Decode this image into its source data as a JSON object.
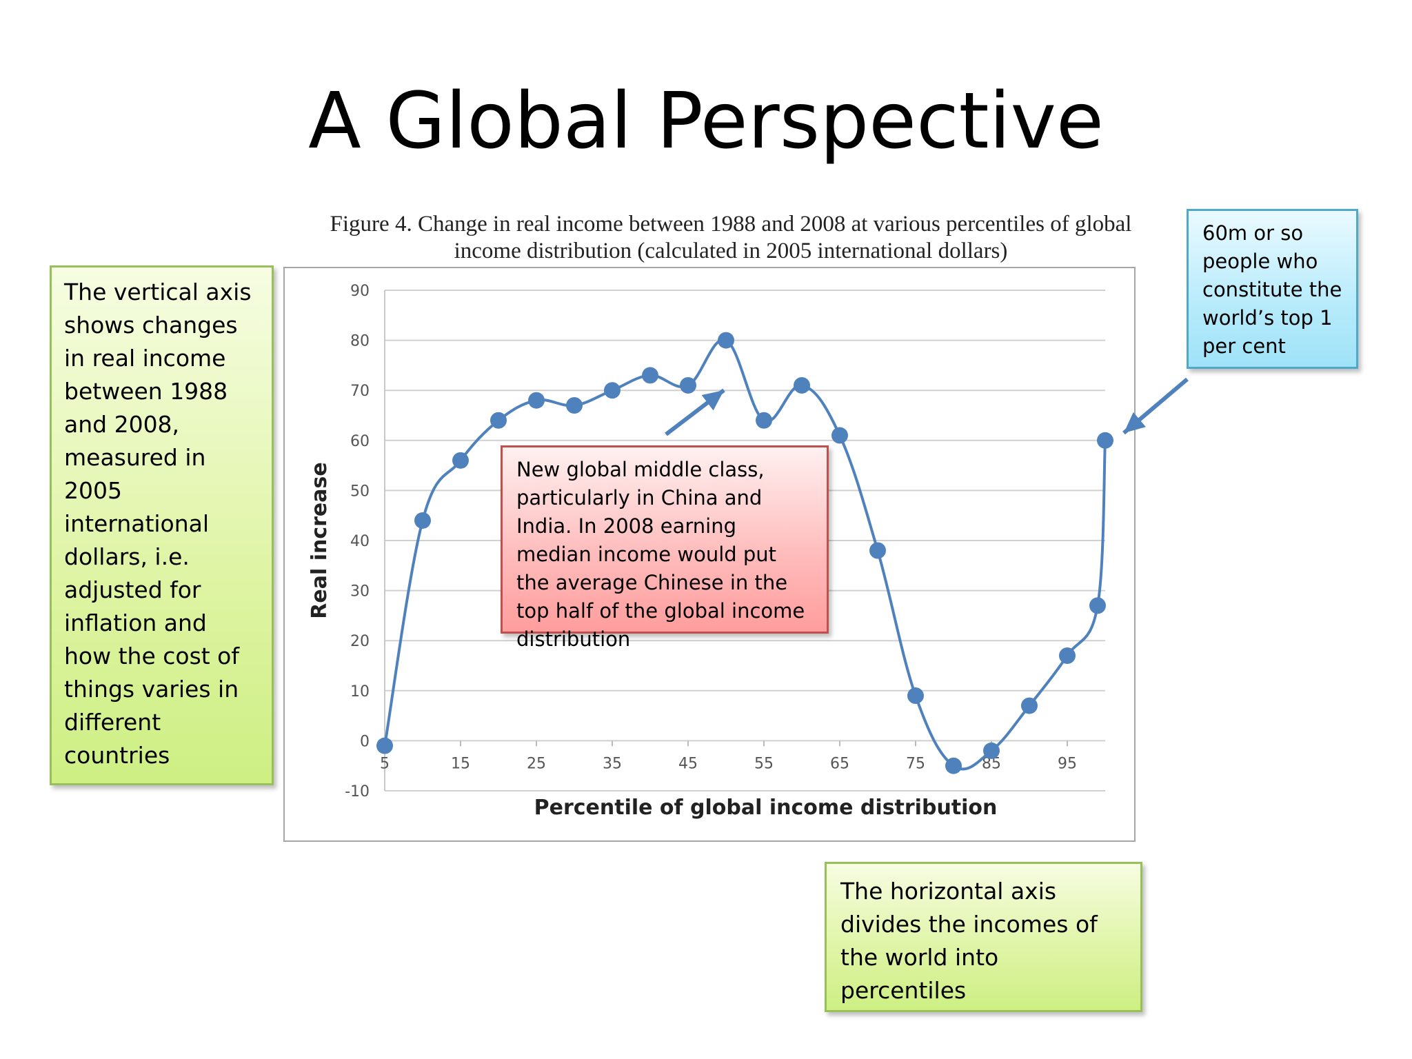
{
  "slide": {
    "title": "A Global Perspective"
  },
  "figure": {
    "caption_line1": "Figure 4. Change in real income between 1988 and 2008 at various percentiles of global",
    "caption_line2": "income distribution (calculated in 2005 international dollars)"
  },
  "callouts": {
    "vertical_axis": "The vertical axis shows changes in real income between 1988 and 2008, measured in 2005 international dollars, i.e. adjusted for inflation and how the cost of things varies in different countries",
    "middle_class": "New global middle class, particularly in China and India. In 2008 earning median income would put the average Chinese in the top half of the global income distribution",
    "top_one_percent": "60m or so people who constitute the world’s top 1 per cent",
    "horizontal_axis": "The horizontal axis divides the incomes of the world into percentiles"
  },
  "colors": {
    "series": "#4f81bd",
    "arrow": "#4f81bd",
    "grid": "#d0d0d0"
  },
  "chart_data": {
    "type": "line",
    "title": "",
    "xlabel": "Percentile of global income distribution",
    "ylabel": "Real increase",
    "xlim": [
      5,
      100
    ],
    "ylim": [
      -10,
      90
    ],
    "yticks": [
      "90",
      "80",
      "70",
      "60",
      "50",
      "40",
      "30",
      "20",
      "10",
      "0",
      "-10"
    ],
    "xticks": [
      "5",
      "15",
      "25",
      "35",
      "45",
      "55",
      "65",
      "75",
      "85",
      "95"
    ],
    "grid": "horizontal",
    "legend": "none",
    "series": [
      {
        "x": [
          5,
          10,
          15,
          20,
          25,
          30,
          35,
          40,
          45,
          50,
          55,
          60,
          65,
          70,
          75,
          80,
          85,
          90,
          95,
          99,
          100
        ],
        "values": [
          -1,
          44,
          56,
          64,
          68,
          67,
          70,
          73,
          71,
          80,
          64,
          71,
          61,
          38,
          9,
          -5,
          -2,
          7,
          17,
          27,
          60
        ]
      }
    ]
  }
}
